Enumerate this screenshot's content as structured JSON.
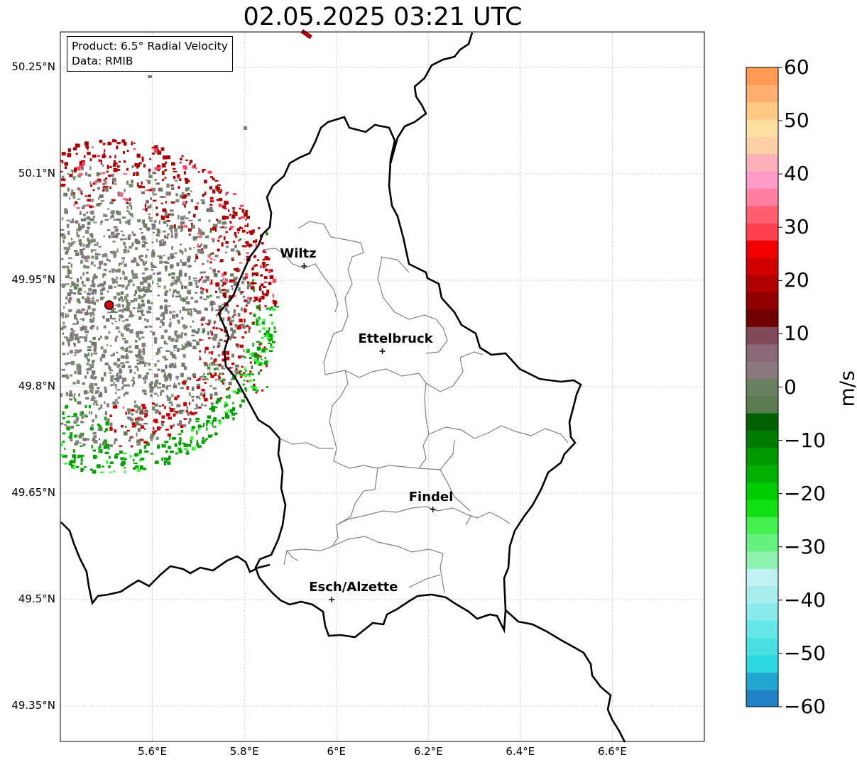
{
  "title": "02.05.2025 03:21 UTC",
  "info": {
    "product": "Product: 6.5° Radial Velocity",
    "source": "Data: RMIB"
  },
  "chart_data": {
    "type": "map",
    "lon_range": [
      5.4,
      6.8
    ],
    "lat_range": [
      49.3,
      50.3
    ],
    "lat_ticks": [
      "49.35°N",
      "49.5°N",
      "49.65°N",
      "49.8°N",
      "49.95°N",
      "50.1°N",
      "50.25°N"
    ],
    "lon_ticks": [
      "5.6°E",
      "5.8°E",
      "6°E",
      "6.2°E",
      "6.4°E",
      "6.6°E"
    ],
    "cities": [
      {
        "name": "Wiltz",
        "lon": 5.93,
        "lat": 49.97
      },
      {
        "name": "Ettelbruck",
        "lon": 6.1,
        "lat": 49.85
      },
      {
        "name": "Findel",
        "lon": 6.21,
        "lat": 49.627
      },
      {
        "name": "Esch/Alzette",
        "lon": 5.99,
        "lat": 49.5
      }
    ],
    "radar_site": {
      "lon": 5.506,
      "lat": 49.915
    },
    "colorbar": {
      "unit": "m/s",
      "min": -60,
      "max": 60,
      "tick_labels": [
        "60",
        "50",
        "40",
        "30",
        "20",
        "10",
        "0",
        "−10",
        "−20",
        "−30",
        "−40",
        "−50",
        "−60"
      ],
      "colors": [
        "#2082c4",
        "#22a8d0",
        "#2ed8e0",
        "#48e0e0",
        "#66e6e6",
        "#88eaea",
        "#a8eef0",
        "#c0f2f4",
        "#90f0b0",
        "#66f080",
        "#44f050",
        "#10e010",
        "#00cc00",
        "#00b000",
        "#009800",
        "#007a00",
        "#006000",
        "#5a7a50",
        "#6a8060",
        "#8a7a80",
        "#8a6878",
        "#804858",
        "#700000",
        "#900000",
        "#b00000",
        "#d00000",
        "#f00000",
        "#ff4050",
        "#ff6070",
        "#ff7fa0",
        "#ff99c8",
        "#ffb0b8",
        "#ffd0a8",
        "#ffe0a0",
        "#ffc884",
        "#ffb070",
        "#ff9a55"
      ]
    }
  }
}
